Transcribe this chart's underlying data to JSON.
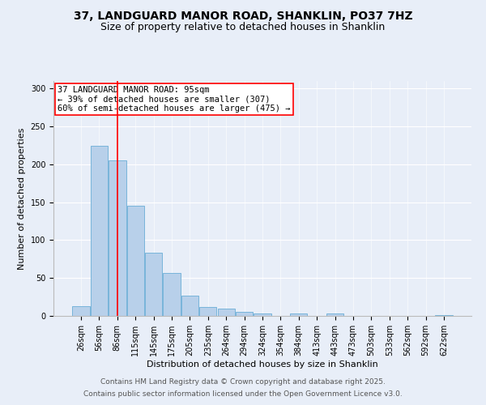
{
  "title1": "37, LANDGUARD MANOR ROAD, SHANKLIN, PO37 7HZ",
  "title2": "Size of property relative to detached houses in Shanklin",
  "xlabel": "Distribution of detached houses by size in Shanklin",
  "ylabel": "Number of detached properties",
  "bar_labels": [
    "26sqm",
    "56sqm",
    "86sqm",
    "115sqm",
    "145sqm",
    "175sqm",
    "205sqm",
    "235sqm",
    "264sqm",
    "294sqm",
    "324sqm",
    "354sqm",
    "384sqm",
    "413sqm",
    "443sqm",
    "473sqm",
    "503sqm",
    "533sqm",
    "562sqm",
    "592sqm",
    "622sqm"
  ],
  "bar_heights": [
    13,
    225,
    205,
    145,
    83,
    57,
    27,
    12,
    10,
    5,
    3,
    0,
    3,
    0,
    3,
    0,
    0,
    0,
    0,
    0,
    1
  ],
  "bar_color": "#b8d0ea",
  "bar_edge_color": "#6aaed6",
  "vline_x": 2.0,
  "vline_color": "red",
  "annotation_text": "37 LANDGUARD MANOR ROAD: 95sqm\n← 39% of detached houses are smaller (307)\n60% of semi-detached houses are larger (475) →",
  "annotation_box_color": "white",
  "annotation_box_edge_color": "red",
  "ylim": [
    0,
    310
  ],
  "yticks": [
    0,
    50,
    100,
    150,
    200,
    250,
    300
  ],
  "footer1": "Contains HM Land Registry data © Crown copyright and database right 2025.",
  "footer2": "Contains public sector information licensed under the Open Government Licence v3.0.",
  "bg_color": "#e8eef8",
  "plot_bg_color": "#e8eef8",
  "title_fontsize": 10,
  "subtitle_fontsize": 9,
  "axis_label_fontsize": 8,
  "tick_fontsize": 7,
  "annotation_fontsize": 7.5,
  "footer_fontsize": 6.5
}
